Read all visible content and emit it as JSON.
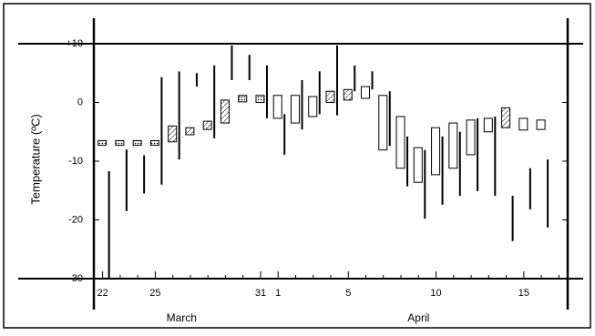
{
  "chart_data": {
    "type": "range-box",
    "y_label": "Temperature (ºC)",
    "categories": [
      "22",
      null,
      null,
      "25",
      null,
      null,
      null,
      null,
      null,
      "31",
      "1",
      null,
      null,
      null,
      "5",
      null,
      null,
      null,
      null,
      "10",
      null,
      null,
      null,
      null,
      "15",
      null,
      null
    ],
    "months": [
      {
        "name": "March",
        "first": 0,
        "last": 9
      },
      {
        "name": "April",
        "first": 10,
        "last": 26
      }
    ],
    "high": [
      -11.7,
      -8,
      -9,
      4.3,
      5.3,
      5,
      6.3,
      9.7,
      8.1,
      6.3,
      -2,
      3.8,
      5.3,
      9.7,
      6.3,
      5.3,
      1.9,
      -5.8,
      -8.1,
      -5.8,
      -5,
      -2.7,
      -2.4,
      -15.9,
      -11.2,
      -9.7,
      null
    ],
    "low": [
      -30,
      -18.5,
      -15.5,
      -14,
      -9.7,
      2.7,
      -6.1,
      3.8,
      3.8,
      -2.7,
      -8.9,
      -4.6,
      -2,
      -2.2,
      1.9,
      2.2,
      -7.4,
      -14.3,
      -19.8,
      -17.4,
      -15.9,
      -15.1,
      -15.9,
      -23.6,
      -18.2,
      -21.3,
      null
    ],
    "box_top": [
      -6.5,
      -6.5,
      -6.5,
      -6.5,
      -4,
      -4.3,
      -3.2,
      0.4,
      1.2,
      1.2,
      1.2,
      1.2,
      1,
      1.9,
      2.2,
      2.7,
      1.2,
      -2.4,
      -7.7,
      -4.3,
      -3.5,
      -3,
      -2.7,
      -0.9,
      -2.7,
      -3,
      null
    ],
    "box_bottom": [
      -7.3,
      -7.3,
      -7.3,
      -7.3,
      -6.7,
      -5.5,
      -4.6,
      -3.5,
      0.1,
      0,
      -2.7,
      -3.5,
      -2.4,
      0,
      0.4,
      0.7,
      -8.1,
      -11.2,
      -13.6,
      -12.3,
      -11.2,
      -8.9,
      -5,
      -4.3,
      -4.7,
      -4.6,
      null
    ],
    "box_style": [
      "dotted",
      "dotted",
      "dotted",
      "dotted",
      "hatched",
      "hatched",
      "hatched",
      "hatched",
      "dotted",
      "dotted",
      "open",
      "open",
      "open",
      "hatched",
      "hatched",
      "open",
      "open",
      "open",
      "open",
      "open",
      "open",
      "open",
      "open",
      "hatched",
      "open",
      "open",
      null
    ],
    "color": "#000000",
    "ylim": [
      -30,
      10
    ],
    "yticks": [
      -30,
      -20,
      -10,
      0,
      {
        "value": 10,
        "label": "+10"
      }
    ]
  }
}
